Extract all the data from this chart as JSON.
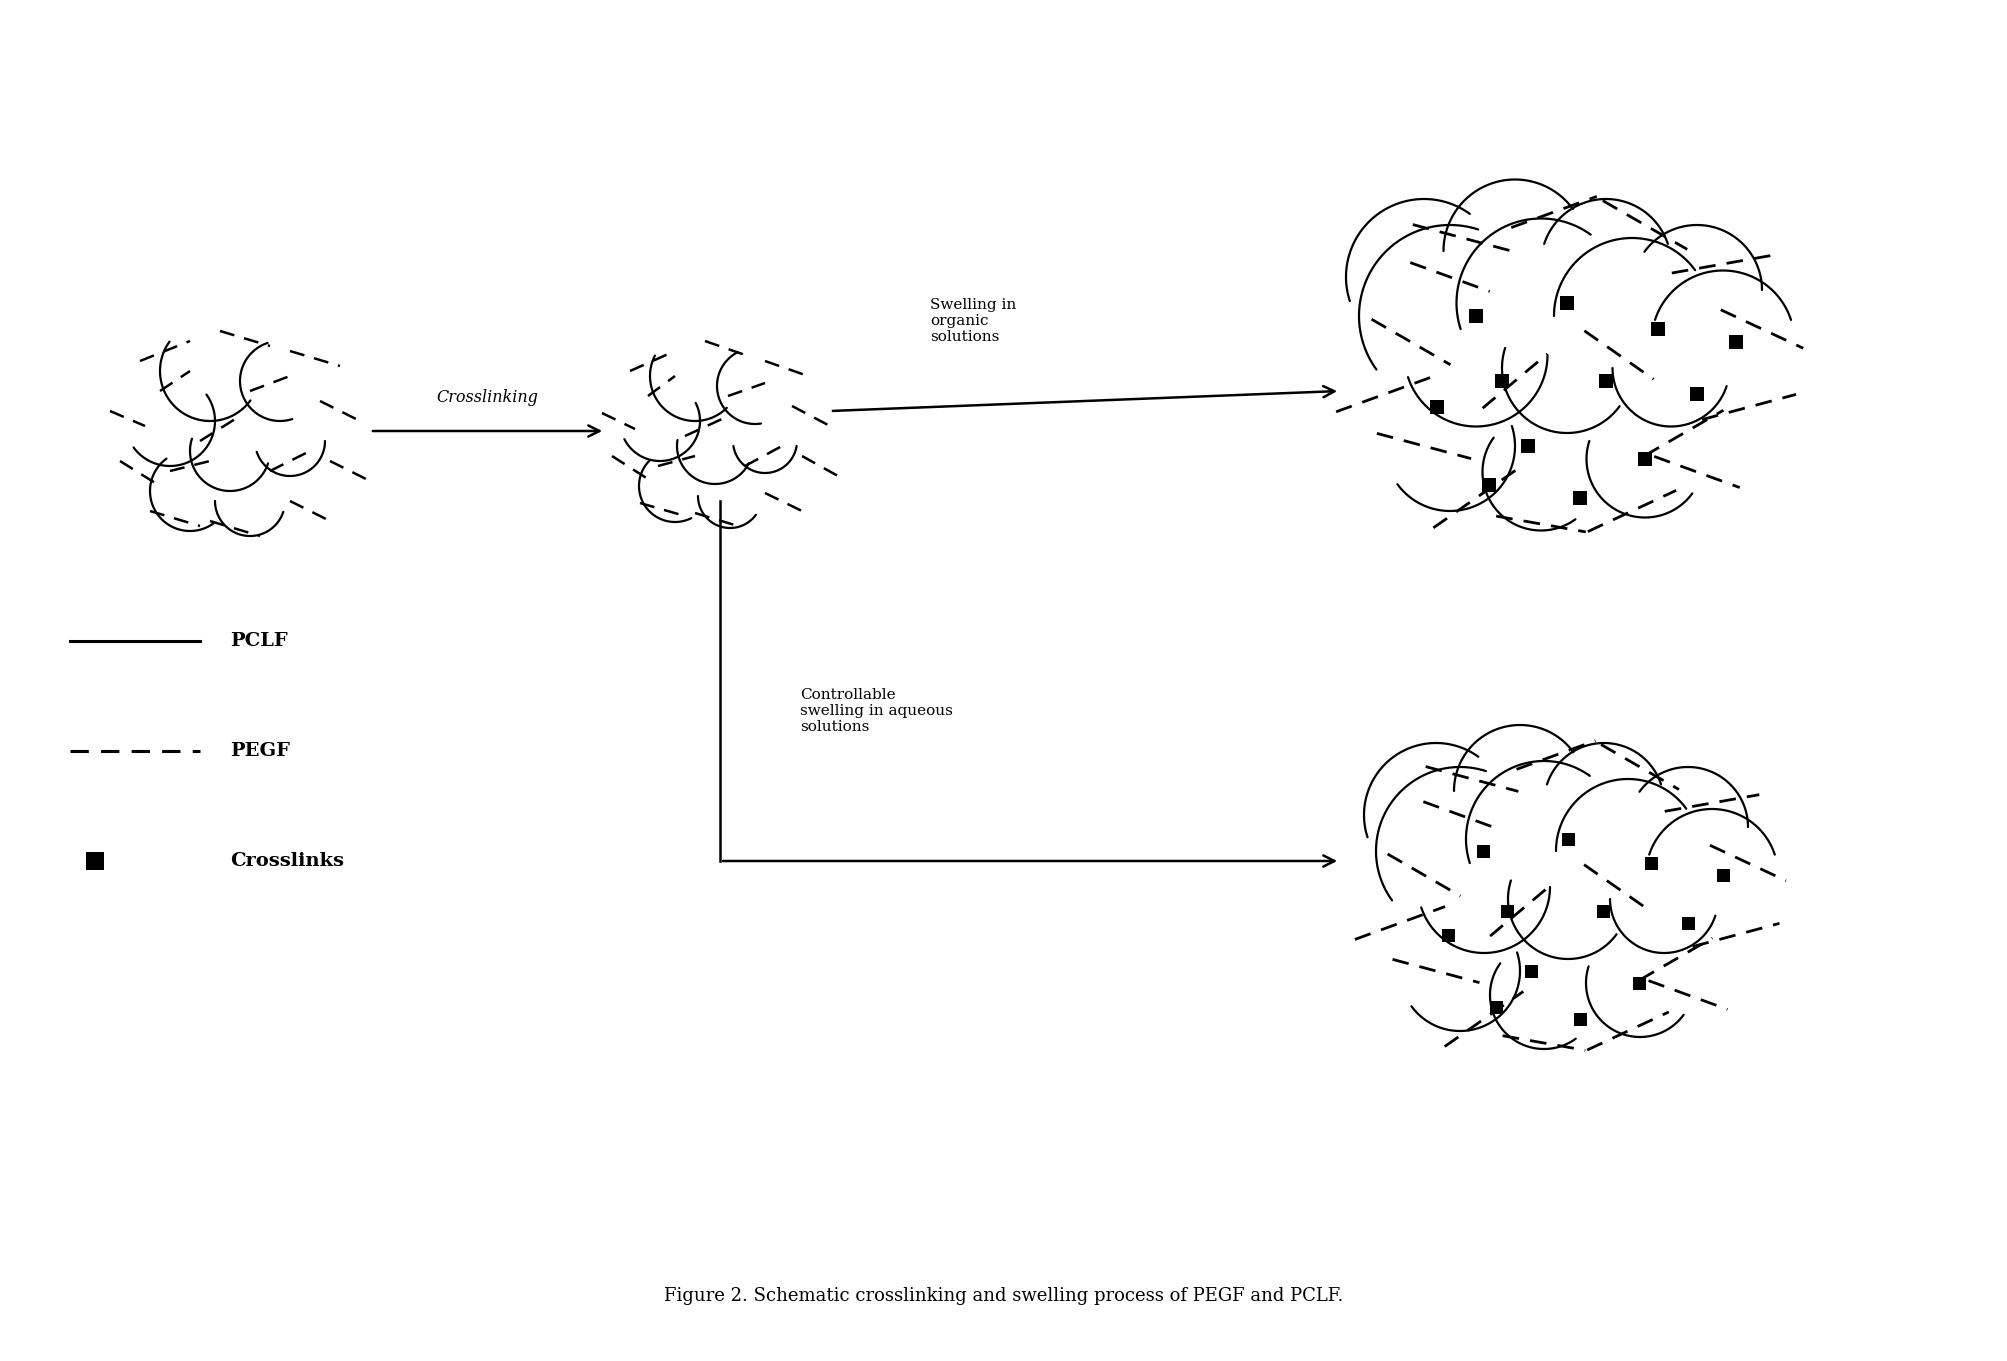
{
  "title": "Figure 2. Schematic crosslinking and swelling process of PEGF and PCLF.",
  "title_fontsize": 13,
  "background_color": "#ffffff",
  "crosslinking_label": "Crosslinking",
  "swelling_organic_label": "Swelling in\norganic\nsolutions",
  "swelling_aqueous_label": "Controllable\nswelling in aqueous\nsolutions",
  "legend_pclf": "PCLF",
  "legend_pegf": "PEGF",
  "legend_crosslinks": "Crosslinks",
  "figsize": [
    20.08,
    13.61
  ],
  "dpi": 100
}
